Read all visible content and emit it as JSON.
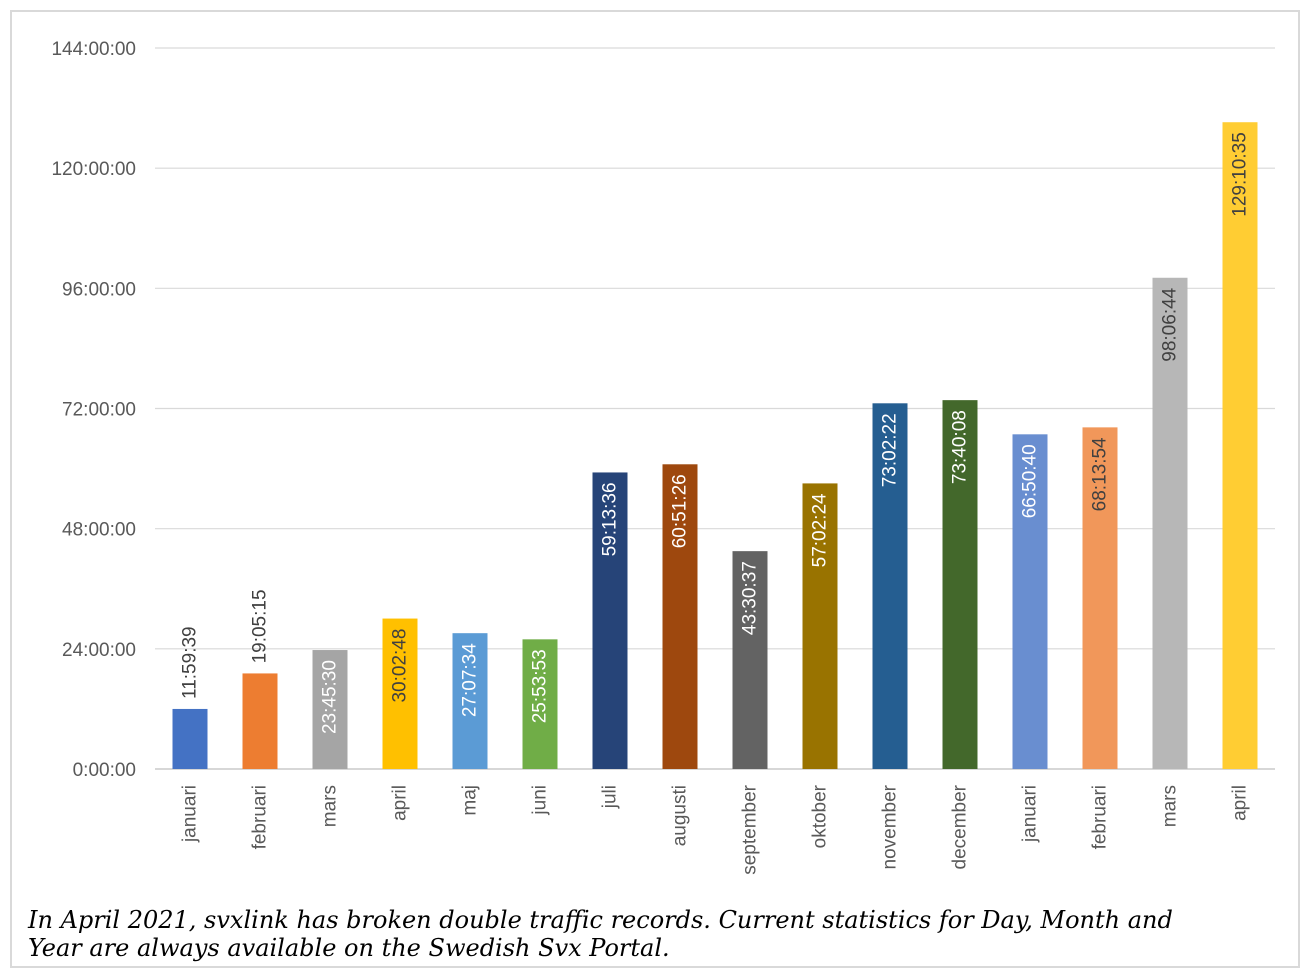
{
  "chart_data": {
    "type": "bar",
    "categories": [
      "januari",
      "februari",
      "mars",
      "april",
      "maj",
      "juni",
      "juli",
      "augusti",
      "september",
      "oktober",
      "november",
      "december",
      "januari",
      "februari",
      "mars",
      "april"
    ],
    "values": [
      11.994,
      19.088,
      23.758,
      30.047,
      27.126,
      25.898,
      59.227,
      60.857,
      43.51,
      57.04,
      73.039,
      73.669,
      66.844,
      68.232,
      98.112,
      129.176
    ],
    "data_labels": [
      "11:59:39",
      "19:05:15",
      "23:45:30",
      "30:02:48",
      "27:07:34",
      "25:53:53",
      "59:13:36",
      "60:51:26",
      "43:30:37",
      "57:02:24",
      "73:02:22",
      "73:40:08",
      "66:50:40",
      "68:13:54",
      "98:06:44",
      "129:10:35"
    ],
    "colors": [
      "#4472c4",
      "#ed7d31",
      "#a5a5a5",
      "#ffc000",
      "#5b9bd5",
      "#70ad47",
      "#264478",
      "#9e480e",
      "#636363",
      "#997300",
      "#255e91",
      "#43682b",
      "#698ed0",
      "#f1975a",
      "#b7b7b7",
      "#ffcd33"
    ],
    "label_colors": [
      "#404040",
      "#404040",
      "#ffffff",
      "#404040",
      "#ffffff",
      "#ffffff",
      "#ffffff",
      "#ffffff",
      "#ffffff",
      "#ffffff",
      "#ffffff",
      "#ffffff",
      "#ffffff",
      "#404040",
      "#404040",
      "#404040"
    ],
    "label_inside": [
      false,
      false,
      true,
      true,
      true,
      true,
      true,
      true,
      true,
      true,
      true,
      true,
      true,
      true,
      true,
      true
    ],
    "y_ticks": [
      0,
      24,
      48,
      72,
      96,
      120,
      144
    ],
    "y_tick_labels": [
      "0:00:00",
      "24:00:00",
      "48:00:00",
      "72:00:00",
      "96:00:00",
      "120:00:00",
      "144:00:00"
    ],
    "ylim": [
      0,
      144
    ],
    "y_unit": "hours",
    "grid": true,
    "title": "",
    "xlabel": "",
    "ylabel": ""
  },
  "caption": "In April  2021, svxlink has broken double traffic records. Current statistics for Day, Month and\nYear are always available on the Swedish Svx Portal."
}
